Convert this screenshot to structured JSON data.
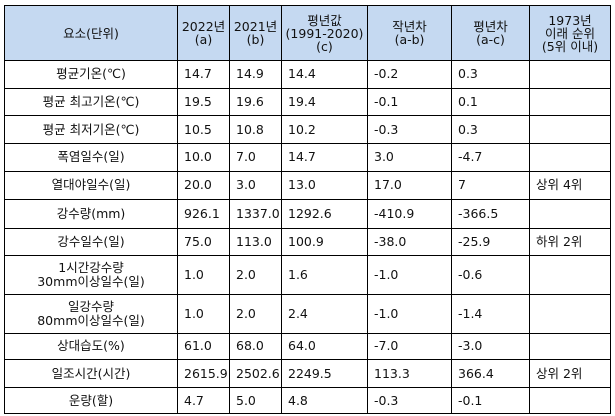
{
  "table": {
    "headers": [
      {
        "l1": "요소(단위)",
        "l2": "",
        "l3": ""
      },
      {
        "l1": "2022년",
        "l2": "(a)",
        "l3": ""
      },
      {
        "l1": "2021년",
        "l2": "(b)",
        "l3": ""
      },
      {
        "l1": "평년값",
        "l2": "(1991-2020)",
        "l3": "(c)"
      },
      {
        "l1": "작년차",
        "l2": "(a-b)",
        "l3": ""
      },
      {
        "l1": "평년차",
        "l2": "(a-c)",
        "l3": ""
      },
      {
        "l1": "1973년",
        "l2": "이래 순위",
        "l3": "(5위 이내)"
      }
    ],
    "rows": [
      {
        "label": [
          "평균기온(℃)"
        ],
        "y2022": "14.7",
        "y2021": "14.9",
        "normal": "14.4",
        "diff_prev": "-0.2",
        "diff_normal": "0.3",
        "rank": ""
      },
      {
        "label": [
          "평균 최고기온(℃)"
        ],
        "y2022": "19.5",
        "y2021": "19.6",
        "normal": "19.4",
        "diff_prev": "-0.1",
        "diff_normal": "0.1",
        "rank": ""
      },
      {
        "label": [
          "평균 최저기온(℃)"
        ],
        "y2022": "10.5",
        "y2021": "10.8",
        "normal": "10.2",
        "diff_prev": "-0.3",
        "diff_normal": "0.3",
        "rank": ""
      },
      {
        "label": [
          "폭염일수(일)"
        ],
        "y2022": "10.0",
        "y2021": "7.0",
        "normal": "14.7",
        "diff_prev": "3.0",
        "diff_normal": "-4.7",
        "rank": ""
      },
      {
        "label": [
          "열대야일수(일)"
        ],
        "y2022": "20.0",
        "y2021": "3.0",
        "normal": "13.0",
        "diff_prev": "17.0",
        "diff_normal": "7",
        "rank": "상위 4위"
      },
      {
        "label": [
          "강수량(mm)"
        ],
        "y2022": "926.1",
        "y2021": "1337.0",
        "normal": "1292.6",
        "diff_prev": "-410.9",
        "diff_normal": "-366.5",
        "rank": ""
      },
      {
        "label": [
          "강수일수(일)"
        ],
        "y2022": "75.0",
        "y2021": "113.0",
        "normal": "100.9",
        "diff_prev": "-38.0",
        "diff_normal": "-25.9",
        "rank": "하위 2위"
      },
      {
        "label": [
          "1시간강수량",
          "30mm이상일수(일)"
        ],
        "y2022": "1.0",
        "y2021": "2.0",
        "normal": "1.6",
        "diff_prev": "-1.0",
        "diff_normal": "-0.6",
        "rank": ""
      },
      {
        "label": [
          "일강수량",
          "80mm이상일수(일)"
        ],
        "y2022": "1.0",
        "y2021": "2.0",
        "normal": "2.4",
        "diff_prev": "-1.0",
        "diff_normal": "-1.4",
        "rank": ""
      },
      {
        "label": [
          "상대습도(%)"
        ],
        "y2022": "61.0",
        "y2021": "68.0",
        "normal": "64.0",
        "diff_prev": "-7.0",
        "diff_normal": "-3.0",
        "rank": ""
      },
      {
        "label": [
          "일조시간(시간)"
        ],
        "y2022": "2615.9",
        "y2021": "2502.6",
        "normal": "2249.5",
        "diff_prev": "113.3",
        "diff_normal": "366.4",
        "rank": "상위 2위"
      },
      {
        "label": [
          "운량(할)"
        ],
        "y2022": "4.7",
        "y2021": "5.0",
        "normal": "4.8",
        "diff_prev": "-0.3",
        "diff_normal": "-0.1",
        "rank": ""
      }
    ]
  },
  "colors": {
    "header_bg": "#c5d9f1",
    "border": "#000000"
  }
}
